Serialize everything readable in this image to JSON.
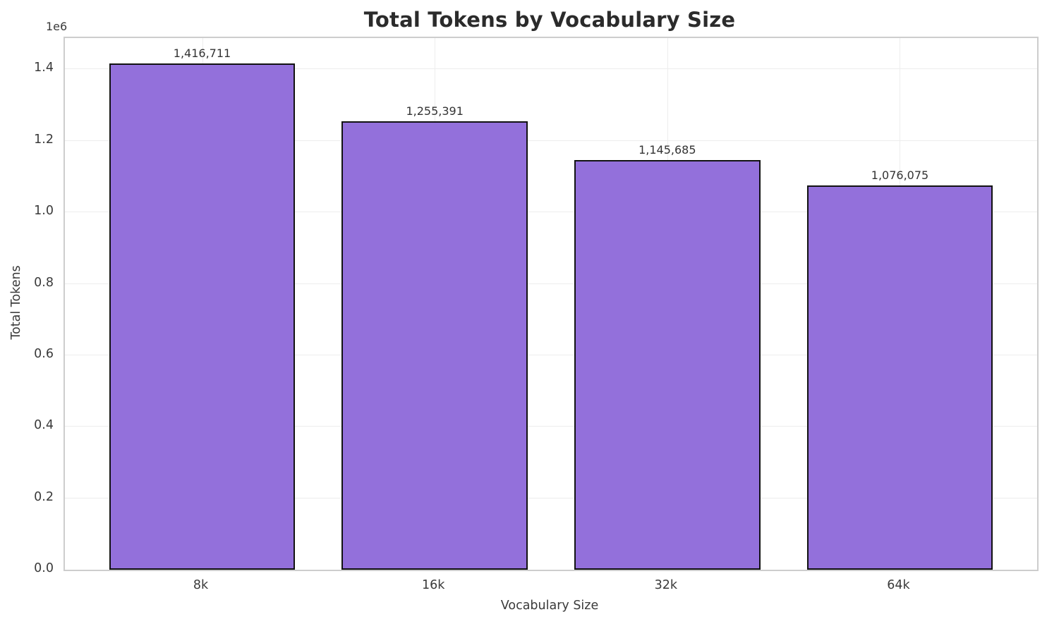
{
  "chart_data": {
    "type": "bar",
    "title": "Total Tokens by Vocabulary Size",
    "xlabel": "Vocabulary Size",
    "ylabel": "Total Tokens",
    "categories": [
      "8k",
      "16k",
      "32k",
      "64k"
    ],
    "values": [
      1416711,
      1255391,
      1145685,
      1076075
    ],
    "value_labels": [
      "1,416,711",
      "1,255,391",
      "1,145,685",
      "1,076,075"
    ],
    "ylim": [
      0,
      1487547
    ],
    "yticks": [
      0,
      200000,
      400000,
      600000,
      800000,
      1000000,
      1200000,
      1400000
    ],
    "ytick_labels": [
      "0.0",
      "0.2",
      "0.4",
      "0.6",
      "0.8",
      "1.0",
      "1.2",
      "1.4"
    ],
    "y_offset_label": "1e6",
    "grid": true,
    "legend": false,
    "bar_color": "#9370DB",
    "bar_edge_color": "#121212",
    "bar_width_fraction": 0.8
  }
}
